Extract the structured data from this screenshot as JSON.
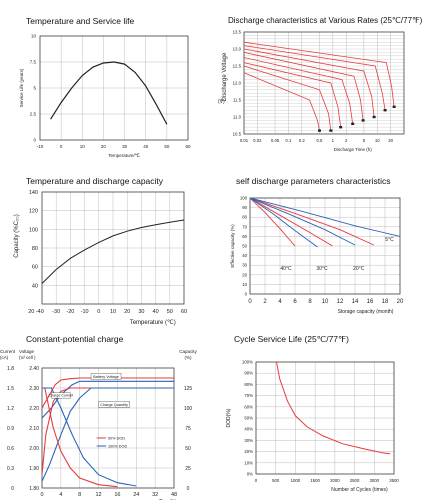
{
  "colors": {
    "red": "#e63b3b",
    "blue": "#2a63b8",
    "black": "#222222",
    "grid": "#bdbdbd",
    "axis": "#444444"
  },
  "chart_data": [
    {
      "id": "p1",
      "type": "line",
      "title": "Temperature and Service life",
      "xlabel": "Temperature/℃",
      "ylabel": "Service Life (years)",
      "xlim": [
        -10,
        60
      ],
      "ylim": [
        0,
        10
      ],
      "xticks": [
        -10,
        0,
        10,
        20,
        30,
        40,
        50,
        60
      ],
      "yticks": [
        0,
        2.5,
        5,
        7.5,
        10
      ],
      "ytick_labels": [
        "0",
        "2.5",
        "5",
        "7.5",
        "10"
      ],
      "grid": true,
      "series": [
        {
          "color": "#222222",
          "x": [
            -5,
            0,
            5,
            10,
            15,
            20,
            25,
            30,
            35,
            40,
            45,
            50
          ],
          "y": [
            2.0,
            3.6,
            5.0,
            6.2,
            7.0,
            7.4,
            7.5,
            7.3,
            6.5,
            5.2,
            3.4,
            1.5
          ]
        }
      ]
    },
    {
      "id": "p2",
      "type": "line",
      "title": "Discharge characteristics at Various Rates (25℃/77℉)",
      "xlabel": "Discharge Time (h)",
      "ylabel": "Discharge Voltage",
      "yunit": "(V)",
      "xscale": "log",
      "xlim": [
        0.01,
        40
      ],
      "ylim": [
        10.5,
        13.5
      ],
      "xticks": [
        0.01,
        0.02,
        0.05,
        0.1,
        0.2,
        0.5,
        1,
        2,
        5,
        10,
        20
      ],
      "xtick_labels": [
        "0.01",
        "0.02",
        "0.05",
        "0.1",
        "0.2",
        "0.5",
        "1",
        "2",
        "5",
        "10",
        "20"
      ],
      "yticks": [
        10.5,
        11.0,
        11.5,
        12.0,
        12.5,
        13.0,
        13.5
      ],
      "ytick_labels": [
        "10.5",
        "11.0",
        "11.5",
        "12.0",
        "12.5",
        "13.0",
        "13.5"
      ],
      "grid": true,
      "series": [
        {
          "color": "#e63b3b",
          "x": [
            0.01,
            0.3,
            0.45,
            0.5
          ],
          "y": [
            12.3,
            11.5,
            10.9,
            10.6
          ]
        },
        {
          "color": "#e63b3b",
          "x": [
            0.01,
            0.5,
            0.8,
            0.9
          ],
          "y": [
            12.5,
            11.8,
            11.1,
            10.6
          ]
        },
        {
          "color": "#e63b3b",
          "x": [
            0.01,
            0.9,
            1.3,
            1.5
          ],
          "y": [
            12.6,
            12.0,
            11.3,
            10.7
          ]
        },
        {
          "color": "#e63b3b",
          "x": [
            0.01,
            1.6,
            2.4,
            2.8
          ],
          "y": [
            12.75,
            12.1,
            11.4,
            10.8
          ]
        },
        {
          "color": "#e63b3b",
          "x": [
            0.01,
            3,
            4.2,
            4.8
          ],
          "y": [
            12.9,
            12.2,
            11.5,
            10.9
          ]
        },
        {
          "color": "#e63b3b",
          "x": [
            0.01,
            5,
            7.5,
            8.5
          ],
          "y": [
            13.0,
            12.35,
            11.6,
            11.0
          ]
        },
        {
          "color": "#e63b3b",
          "x": [
            0.01,
            9,
            13,
            15
          ],
          "y": [
            13.1,
            12.5,
            11.7,
            11.2
          ]
        },
        {
          "color": "#e63b3b",
          "x": [
            0.01,
            16,
            21,
            24
          ],
          "y": [
            13.2,
            12.6,
            11.9,
            11.3
          ]
        }
      ]
    },
    {
      "id": "p3",
      "type": "line",
      "title": "Temperature and discharge capacity",
      "xlabel": "Temperature (℃)",
      "ylabel": "Capacity (%C₂₀)",
      "xlim": [
        -40,
        60
      ],
      "ylim": [
        20,
        140
      ],
      "xticks": [
        -40,
        -30,
        -20,
        -10,
        0,
        10,
        20,
        30,
        40,
        50,
        60
      ],
      "xtick_labels": [
        "20 -40",
        "-30",
        "-20",
        "-10",
        "0",
        "10",
        "20",
        "30",
        "40",
        "50",
        "60"
      ],
      "yticks": [
        20,
        40,
        60,
        80,
        100,
        120,
        140
      ],
      "ytick_labels": [
        "20",
        "40",
        "60",
        "80",
        "100",
        "120",
        "140"
      ],
      "grid": true,
      "series": [
        {
          "color": "#222222",
          "x": [
            -40,
            -30,
            -20,
            -10,
            0,
            10,
            20,
            30,
            40,
            50,
            60
          ],
          "y": [
            42,
            57,
            69,
            78,
            86,
            93,
            98,
            102,
            105,
            107.5,
            110
          ]
        }
      ]
    },
    {
      "id": "p4",
      "type": "line",
      "title": "self discharge parameters characteristics",
      "xlabel": "Storage capacity (month)",
      "ylabel": "Effective capacity (%)",
      "xlim": [
        0,
        20
      ],
      "ylim": [
        0,
        100
      ],
      "xticks": [
        0,
        2,
        4,
        6,
        8,
        10,
        12,
        14,
        16,
        18,
        20
      ],
      "yticks": [
        0,
        10,
        20,
        30,
        40,
        50,
        60,
        70,
        80,
        90,
        100
      ],
      "grid": true,
      "annotations": [
        {
          "text": "5°C",
          "x": 18.6,
          "y": 55
        },
        {
          "text": "40°C",
          "x": 4.8,
          "y": 25
        },
        {
          "text": "30°C",
          "x": 9.6,
          "y": 25
        },
        {
          "text": "20°C",
          "x": 14.5,
          "y": 25
        }
      ],
      "series": [
        {
          "color": "#e63b3b",
          "x": [
            0,
            2,
            4,
            6
          ],
          "y": [
            100,
            85,
            68,
            50
          ]
        },
        {
          "color": "#e63b3b",
          "x": [
            0,
            4,
            8,
            11
          ],
          "y": [
            100,
            82,
            64,
            50
          ]
        },
        {
          "color": "#e63b3b",
          "x": [
            0,
            6,
            12,
            16.5
          ],
          "y": [
            100,
            84,
            67,
            51
          ]
        },
        {
          "color": "#2a63b8",
          "x": [
            0,
            3,
            6,
            9
          ],
          "y": [
            100,
            84,
            66,
            49
          ]
        },
        {
          "color": "#2a63b8",
          "x": [
            0,
            5,
            10,
            14
          ],
          "y": [
            100,
            84,
            67,
            51
          ]
        },
        {
          "color": "#2a63b8",
          "x": [
            0,
            7,
            14,
            20
          ],
          "y": [
            100,
            86,
            71,
            60
          ]
        }
      ]
    },
    {
      "id": "p5",
      "type": "line",
      "title": "Constant-potential charge",
      "xlabel": "Time(h)",
      "xlim": [
        0,
        48
      ],
      "ylim": [
        0,
        1.8
      ],
      "xticks": [
        0,
        4,
        8,
        12,
        16,
        24,
        32,
        48
      ],
      "xtick_labels": [
        "0",
        "4",
        "8",
        "12",
        "16",
        "24",
        "32",
        "48"
      ],
      "x_positions": [
        0,
        1,
        2,
        3,
        4,
        5,
        6,
        7
      ],
      "yticks": [
        0,
        0.3,
        0.6,
        0.9,
        1.2,
        1.5,
        1.8
      ],
      "ytick_labels": [
        "0",
        "0.3",
        "0.6",
        "0.9",
        "1.2",
        "1.5",
        "1.8"
      ],
      "voltage_ticks": [
        "1.80",
        "1.90",
        "2.00",
        "2.10",
        "2.20",
        "2.30",
        "2.40"
      ],
      "capacity_ticks": [
        "0",
        "25",
        "50",
        "75",
        "100",
        "125"
      ],
      "head_current": "Current",
      "head_current_unit": "(cA)",
      "head_voltage": "Voltage",
      "head_voltage_unit": "(V/ cell )",
      "head_capacity": "Capacity",
      "head_capacity_unit": "(%)",
      "labels": {
        "battery_voltage": "Battery Voltage",
        "charge_quantity": "Charge Quantity",
        "charge_current": "Charge Current",
        "legend_red": "50% DOD",
        "legend_blue": "100% DOD"
      },
      "series": [
        {
          "color": "#e63b3b",
          "x": [
            0,
            0.3,
            0.7,
            1.0,
            1.5,
            2.0,
            7.0
          ],
          "y": [
            1.2,
            1.35,
            1.55,
            1.62,
            1.64,
            1.65,
            1.65
          ]
        },
        {
          "color": "#2a63b8",
          "x": [
            0,
            0.5,
            1.0,
            1.6,
            2.0,
            7.0
          ],
          "y": [
            1.05,
            1.2,
            1.4,
            1.55,
            1.6,
            1.6
          ]
        },
        {
          "color": "#e63b3b",
          "x": [
            0,
            0.2,
            0.6,
            1.0,
            1.5,
            2.0,
            7.0
          ],
          "y": [
            0.2,
            0.8,
            1.3,
            1.45,
            1.5,
            1.5,
            1.5
          ]
        },
        {
          "color": "#2a63b8",
          "x": [
            0,
            0.4,
            1.0,
            1.5,
            2.0,
            2.6,
            7.0
          ],
          "y": [
            0.1,
            0.35,
            0.8,
            1.15,
            1.35,
            1.5,
            1.5
          ]
        },
        {
          "color": "#e63b3b",
          "x": [
            0,
            0.15,
            0.6,
            1.0,
            1.5,
            2.0,
            3.0,
            4.0
          ],
          "y": [
            1.5,
            1.5,
            0.9,
            0.55,
            0.3,
            0.15,
            0.05,
            0.02
          ]
        },
        {
          "color": "#2a63b8",
          "x": [
            0,
            0.5,
            1.0,
            1.6,
            2.2,
            3.0,
            4.0,
            5.0
          ],
          "y": [
            1.5,
            1.5,
            1.2,
            0.8,
            0.45,
            0.2,
            0.08,
            0.03
          ]
        }
      ]
    },
    {
      "id": "p6",
      "type": "line",
      "title": "Cycle Service Life (25℃/77℉)",
      "xlabel": "Number of Cycles (times)",
      "ylabel": "DOD(%)",
      "xlim": [
        0,
        3500
      ],
      "ylim": [
        0,
        100
      ],
      "xticks": [
        0,
        500,
        1000,
        1500,
        2000,
        2500,
        3000,
        3500
      ],
      "yticks": [
        0,
        10,
        20,
        30,
        40,
        50,
        60,
        70,
        80,
        90,
        100
      ],
      "ytick_labels": [
        "0%",
        "10%",
        "20%",
        "30%",
        "40%",
        "50%",
        "60%",
        "70%",
        "80%",
        "90%",
        "100%"
      ],
      "grid": true,
      "series": [
        {
          "color": "#e63b3b",
          "x": [
            520,
            600,
            800,
            1000,
            1300,
            1700,
            2200,
            2800,
            3200,
            3400
          ],
          "y": [
            100,
            85,
            65,
            52,
            42,
            34,
            27,
            22,
            19,
            18
          ]
        }
      ]
    }
  ]
}
